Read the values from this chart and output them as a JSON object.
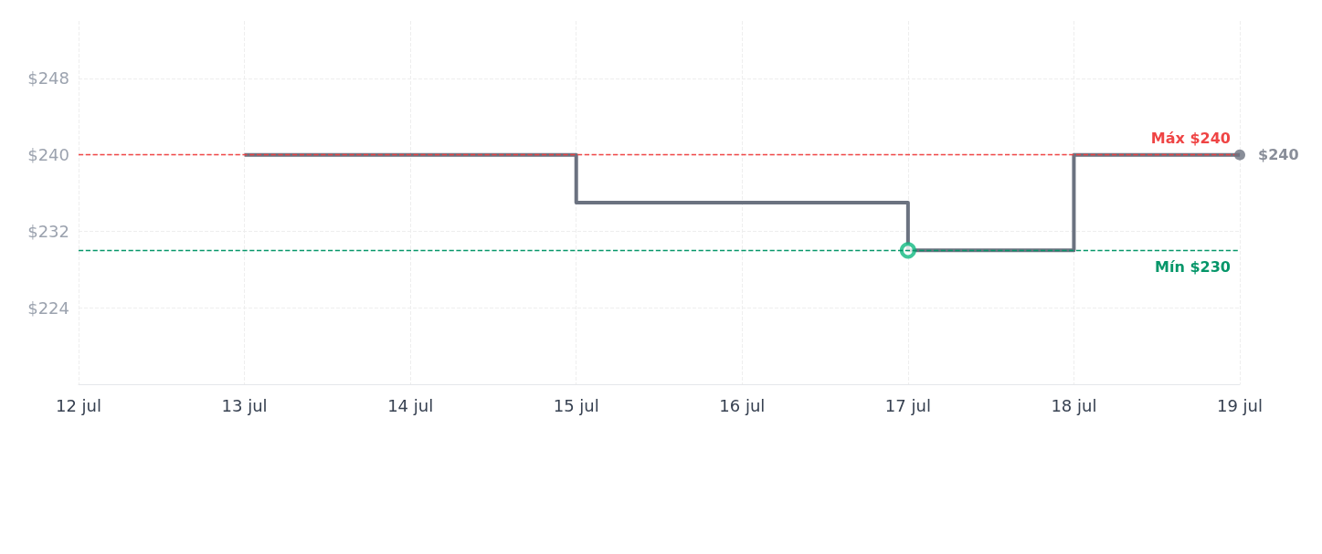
{
  "chart_data": {
    "type": "step",
    "x": [
      "--07-13",
      "--07-15",
      "--07-17",
      "--07-18",
      "--07-19"
    ],
    "series": [
      {
        "color": "#6b7280",
        "values": [
          240,
          235,
          230,
          240,
          240
        ],
        "marker": "none"
      },
      {
        "type": "scatter",
        "x": [
          "--07-17"
        ],
        "color": "#10b981",
        "values": [
          230
        ],
        "marker": "circle"
      },
      {
        "type": "scatter",
        "x": [
          "--07-19"
        ],
        "color": "#6b7280",
        "values": [
          240
        ],
        "marker": "circle",
        "value_labels": [
          "$240"
        ]
      }
    ],
    "xlim": [
      "--07-12",
      "--07-19"
    ],
    "xticks": [
      {
        "value": "--07-12",
        "label": "12 jul"
      },
      {
        "value": "--07-13",
        "label": "13 jul"
      },
      {
        "value": "--07-14",
        "label": "14 jul"
      },
      {
        "value": "--07-15",
        "label": "15 jul"
      },
      {
        "value": "--07-16",
        "label": "16 jul"
      },
      {
        "value": "--07-17",
        "label": "17 jul"
      },
      {
        "value": "--07-18",
        "label": "18 jul"
      },
      {
        "value": "--07-19",
        "label": "19 jul"
      }
    ],
    "ylim": [
      216,
      254
    ],
    "yticks": [
      {
        "value": 224,
        "label": "$224"
      },
      {
        "value": 232,
        "label": "$232"
      },
      {
        "value": 240,
        "label": "$240"
      },
      {
        "value": 248,
        "label": "$248"
      }
    ],
    "ref_lines": [
      {
        "axis": "y",
        "value": 240,
        "label": "Máx $240",
        "color": "#ef4444",
        "line_style": "dashed"
      },
      {
        "axis": "y",
        "value": 230,
        "label": "Mín $230",
        "color": "#059669",
        "line_style": "dashed"
      }
    ],
    "grid": true,
    "line_style": "solid"
  }
}
